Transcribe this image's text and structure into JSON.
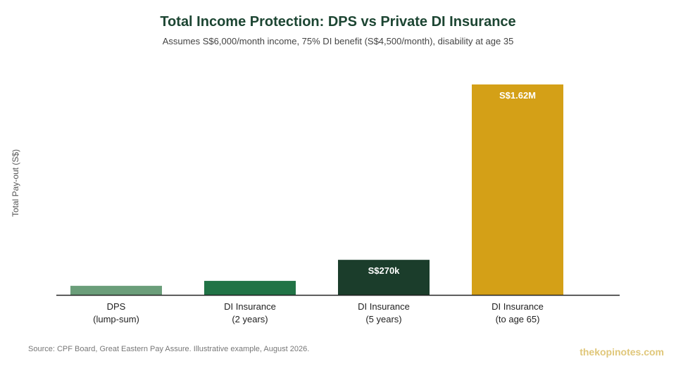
{
  "chart_data": {
    "type": "bar",
    "title": "Total Income Protection: DPS vs Private DI Insurance",
    "subtitle": "Assumes S$6,000/month income, 75% DI benefit (S$4,500/month), disability at age 35",
    "xlabel": "",
    "ylabel": "Total Pay-out (S$)",
    "ylim": [
      0,
      1620000
    ],
    "grid": false,
    "categories": [
      [
        "DPS",
        "(lump-sum)"
      ],
      [
        "DI Insurance",
        "(2 years)"
      ],
      [
        "DI Insurance",
        "(5 years)"
      ],
      [
        "DI Insurance",
        "(to age 65)"
      ]
    ],
    "values": [
      70000,
      108000,
      270000,
      1620000
    ],
    "data_labels": [
      "",
      "",
      "S$270k",
      "S$1.62M"
    ],
    "colors": [
      "#6b9e7a",
      "#217346",
      "#1b3d2b",
      "#d4a017"
    ]
  },
  "footer": {
    "source": "Source: CPF Board, Great Eastern Pay Assure. Illustrative example, August 2026.",
    "brand": "thekopinotes.com"
  }
}
